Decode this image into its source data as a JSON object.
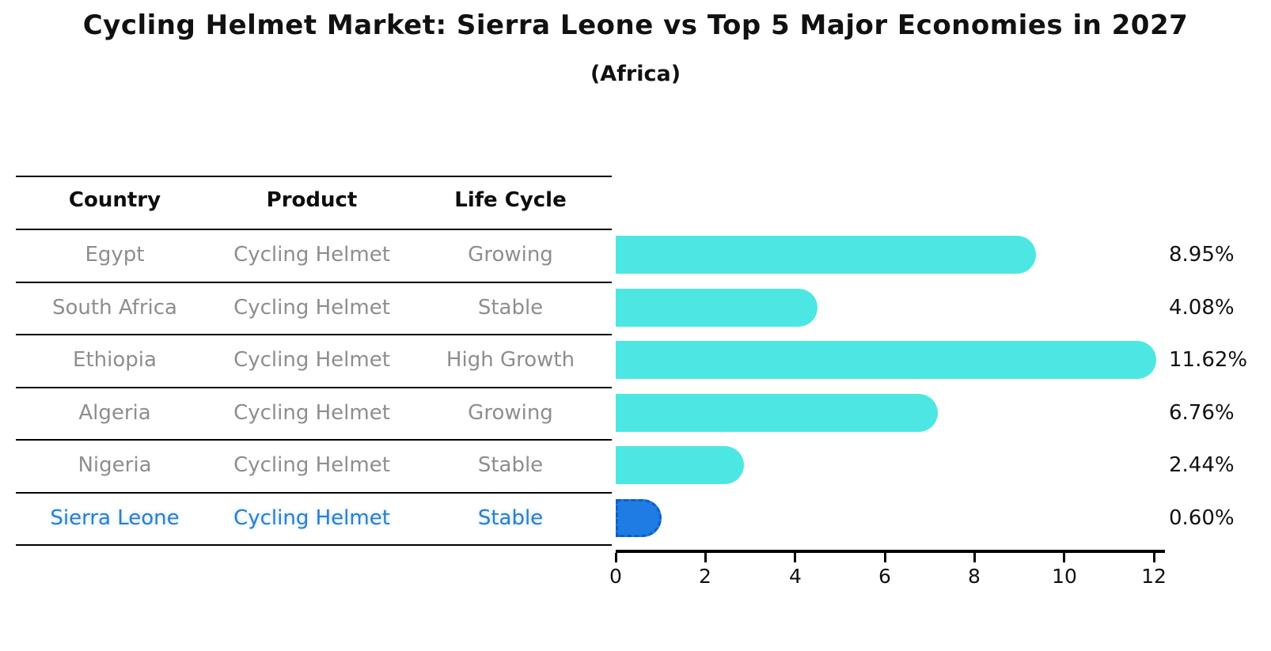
{
  "title": "Cycling Helmet Market: Sierra Leone vs Top 5 Major Economies in 2027",
  "subtitle": "(Africa)",
  "table": {
    "headers": [
      "Country",
      "Product",
      "Life Cycle"
    ],
    "rows": [
      {
        "country": "Egypt",
        "product": "Cycling Helmet",
        "life_cycle": "Growing",
        "value_label": "8.95%",
        "highlight": false
      },
      {
        "country": "South Africa",
        "product": "Cycling Helmet",
        "life_cycle": "Stable",
        "value_label": "4.08%",
        "highlight": false
      },
      {
        "country": "Ethiopia",
        "product": "Cycling Helmet",
        "life_cycle": "High Growth",
        "value_label": "11.62%",
        "highlight": false
      },
      {
        "country": "Algeria",
        "product": "Cycling Helmet",
        "life_cycle": "Growing",
        "value_label": "6.76%",
        "highlight": false
      },
      {
        "country": "Nigeria",
        "product": "Cycling Helmet",
        "life_cycle": "Stable",
        "value_label": "2.44%",
        "highlight": false
      },
      {
        "country": "Sierra Leone",
        "product": "Cycling Helmet",
        "life_cycle": "Stable",
        "value_label": "0.60%",
        "highlight": true
      }
    ]
  },
  "chart_data": {
    "type": "bar",
    "orientation": "horizontal",
    "title": "Cycling Helmet Market: Sierra Leone vs Top 5 Major Economies in 2027",
    "subtitle": "(Africa)",
    "categories": [
      "Egypt",
      "South Africa",
      "Ethiopia",
      "Algeria",
      "Nigeria",
      "Sierra Leone"
    ],
    "values": [
      8.95,
      4.08,
      11.62,
      6.76,
      2.44,
      0.6
    ],
    "value_labels": [
      "8.95%",
      "4.08%",
      "11.62%",
      "6.76%",
      "2.44%",
      "0.60%"
    ],
    "xlabel": "",
    "ylabel": "",
    "xlim": [
      0,
      12
    ],
    "x_ticks": [
      0,
      2,
      4,
      6,
      8,
      10,
      12
    ],
    "grid": false,
    "legend": "none",
    "colors": {
      "bar": "#4de7e3",
      "highlight_bar": "#1e7ce2",
      "highlight_bar_edge": "#0d5fc9",
      "highlight_text": "#2d7ecb",
      "row_text": "#8e8e8e",
      "axis": "#000000"
    },
    "highlight_index": 5
  }
}
